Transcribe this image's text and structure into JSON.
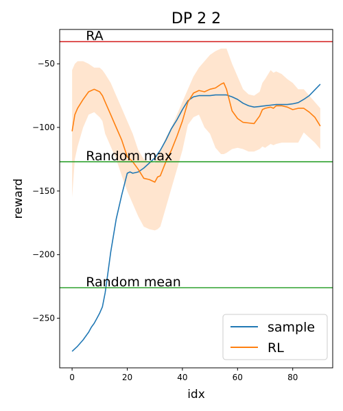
{
  "chart_data": {
    "type": "line",
    "title": "DP 2 2",
    "xlabel": "idx",
    "ylabel": "reward",
    "xlim": [
      -4.5,
      94.5
    ],
    "ylim": [
      -289,
      -23
    ],
    "x_ticks": [
      0,
      20,
      40,
      60,
      80
    ],
    "y_ticks": [
      -50,
      -100,
      -150,
      -200,
      -250
    ],
    "grid": false,
    "legend_position": "lower-right",
    "reference_lines": [
      {
        "label": "RA",
        "y": -32.5,
        "color": "#d62728"
      },
      {
        "label": "Random max",
        "y": -127,
        "color": "#2ca02c"
      },
      {
        "label": "Random mean",
        "y": -226,
        "color": "#2ca02c"
      }
    ],
    "series": [
      {
        "name": "sample",
        "color": "#1f77b4",
        "x": [
          0,
          2,
          4,
          6,
          7,
          8,
          9,
          10,
          11,
          12,
          13,
          14,
          16,
          18,
          20,
          21,
          22,
          24,
          26,
          28,
          30,
          32,
          34,
          36,
          38,
          40,
          42,
          44,
          46,
          48,
          50,
          52,
          54,
          56,
          58,
          60,
          62,
          64,
          66,
          68,
          70,
          72,
          74,
          76,
          78,
          80,
          82,
          84,
          86,
          88,
          90
        ],
        "y": [
          -276,
          -272,
          -267,
          -261,
          -257,
          -254,
          -250,
          -246,
          -241,
          -230,
          -214,
          -198,
          -172,
          -153,
          -136,
          -135,
          -136,
          -135,
          -132,
          -128,
          -124,
          -118,
          -110,
          -101,
          -94,
          -86,
          -79,
          -76,
          -75,
          -75,
          -75,
          -74.5,
          -74.5,
          -74.5,
          -76,
          -78,
          -81,
          -83,
          -84,
          -83.5,
          -83,
          -82.5,
          -82,
          -82,
          -82,
          -81.5,
          -80.5,
          -78,
          -75,
          -70.5,
          -66
        ]
      },
      {
        "name": "RL",
        "color": "#ff7f0e",
        "x": [
          0,
          1,
          2,
          4,
          6,
          8,
          10,
          11,
          12,
          14,
          16,
          18,
          20,
          22,
          24,
          26,
          28,
          30,
          31,
          32,
          34,
          36,
          38,
          40,
          42,
          44,
          46,
          48,
          50,
          52,
          54,
          55,
          56,
          58,
          60,
          62,
          64,
          66,
          68,
          69,
          70,
          72,
          73,
          74,
          76,
          78,
          80,
          82,
          84,
          86,
          88,
          90
        ],
        "y": [
          -103,
          -90,
          -85,
          -78,
          -72,
          -70,
          -72,
          -75,
          -80,
          -90,
          -100,
          -110,
          -123,
          -127,
          -133,
          -140,
          -141,
          -143,
          -139,
          -138,
          -127,
          -118,
          -107,
          -95,
          -80,
          -73,
          -71,
          -72,
          -70,
          -69,
          -66,
          -65,
          -70,
          -87,
          -93,
          -96,
          -96.5,
          -97,
          -91,
          -86,
          -85,
          -84,
          -85,
          -83,
          -83,
          -84,
          -86,
          -85,
          -85,
          -88,
          -92,
          -99
        ],
        "lower": [
          -155,
          -125,
          -115,
          -100,
          -90,
          -88,
          -92,
          -95,
          -105,
          -115,
          -125,
          -138,
          -150,
          -160,
          -170,
          -178,
          -180,
          -181,
          -180,
          -178,
          -163,
          -148,
          -133,
          -118,
          -98,
          -92,
          -90,
          -100,
          -105,
          -116,
          -121,
          -121,
          -120,
          -117,
          -116,
          -117,
          -119,
          -119,
          -117,
          -115,
          -116,
          -113,
          -114,
          -113,
          -112,
          -112,
          -112,
          -112,
          -104,
          -108,
          -112,
          -117
        ],
        "upper": [
          -55,
          -50,
          -48,
          -48,
          -50,
          -53,
          -53,
          -55,
          -58,
          -65,
          -75,
          -85,
          -95,
          -105,
          -118,
          -125,
          -127,
          -128,
          -122,
          -118,
          -108,
          -100,
          -90,
          -80,
          -70,
          -60,
          -53,
          -48,
          -43,
          -40,
          -38,
          -38,
          -38,
          -50,
          -60,
          -70,
          -74,
          -75,
          -72,
          -65,
          -62,
          -55,
          -57,
          -56,
          -58,
          -62,
          -65,
          -70,
          -70,
          -75,
          -80,
          -85
        ]
      }
    ]
  }
}
